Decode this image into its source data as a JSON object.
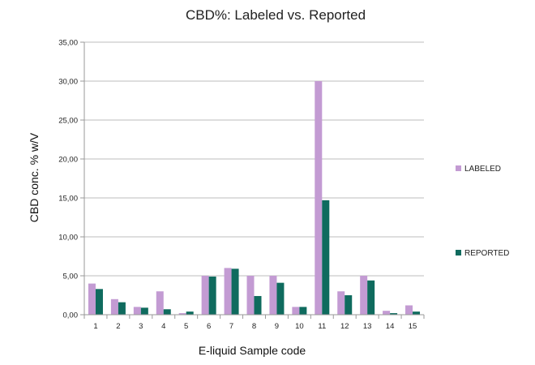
{
  "chart_data": {
    "type": "bar",
    "title": "CBD%: Labeled vs. Reported",
    "xlabel": "E-liquid Sample code",
    "ylabel": "CBD conc. % w/V",
    "categories": [
      "1",
      "2",
      "3",
      "4",
      "5",
      "6",
      "7",
      "8",
      "9",
      "10",
      "11",
      "12",
      "13",
      "14",
      "15"
    ],
    "ylim": [
      0,
      35
    ],
    "yticks": [
      "0,00",
      "5,00",
      "10,00",
      "15,00",
      "20,00",
      "25,00",
      "30,00",
      "35,00"
    ],
    "ytick_values": [
      0,
      5,
      10,
      15,
      20,
      25,
      30,
      35
    ],
    "grid": true,
    "legend_position": "right",
    "series": [
      {
        "name": "LABELED",
        "color": "#c39bd3",
        "values": [
          4.0,
          2.0,
          1.0,
          3.0,
          0.2,
          5.0,
          6.0,
          5.0,
          5.0,
          1.0,
          30.0,
          3.0,
          5.0,
          0.5,
          1.2
        ]
      },
      {
        "name": "REPORTED",
        "color": "#0f6b5e",
        "values": [
          3.3,
          1.6,
          0.9,
          0.7,
          0.4,
          4.9,
          5.9,
          2.4,
          4.1,
          1.0,
          14.7,
          2.5,
          4.4,
          0.2,
          0.4
        ]
      }
    ]
  }
}
